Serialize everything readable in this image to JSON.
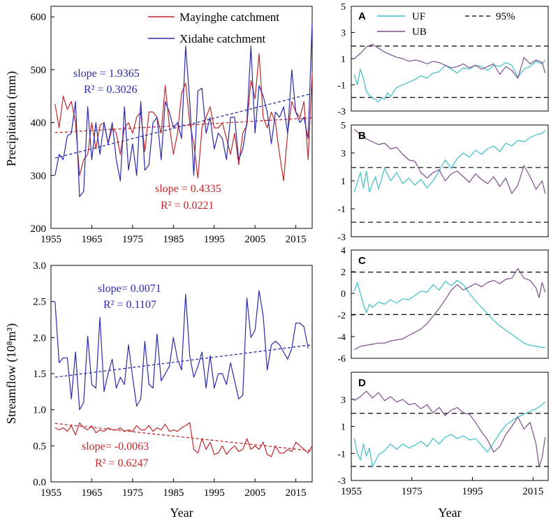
{
  "chart_data": [
    {
      "id": "precip",
      "type": "line",
      "ylabel": "Precipitation (mm)",
      "xlabel": "",
      "xlim": [
        1955,
        2019
      ],
      "ylim": [
        200,
        620
      ],
      "xticks": [
        "1955",
        "1965",
        "1975",
        "1985",
        "1995",
        "2005",
        "2015"
      ],
      "yticks": [
        "200",
        "300",
        "400",
        "500",
        "600"
      ],
      "legend": [
        "Mayinghe catchment",
        "Xidahe catchment"
      ],
      "annotations": {
        "blue_slope": "slope = 1.9365",
        "blue_r2": "R² = 0.3026",
        "red_slope": "slope = 0.4335",
        "red_r2": "R² = 0.0221"
      },
      "series": [
        {
          "name": "Mayinghe catchment",
          "color": "#c0282a",
          "x_start": 1956,
          "values": [
            435,
            390,
            450,
            425,
            440,
            400,
            300,
            330,
            340,
            400,
            350,
            395,
            400,
            360,
            390,
            380,
            340,
            390,
            400,
            380,
            410,
            420,
            345,
            420,
            420,
            410,
            380,
            470,
            395,
            340,
            380,
            455,
            475,
            400,
            360,
            295,
            390,
            410,
            430,
            390,
            390,
            400,
            370,
            340,
            380,
            320,
            380,
            395,
            480,
            445,
            530,
            410,
            390,
            420,
            400,
            340,
            290,
            380,
            440,
            420,
            410,
            440,
            330,
            495
          ]
        },
        {
          "name": "Xidahe catchment",
          "color": "#2a2aaa",
          "x_start": 1956,
          "values": [
            300,
            340,
            330,
            375,
            380,
            440,
            260,
            270,
            430,
            330,
            400,
            340,
            400,
            360,
            400,
            330,
            290,
            430,
            310,
            360,
            300,
            440,
            310,
            320,
            400,
            410,
            330,
            440,
            420,
            390,
            400,
            370,
            545,
            440,
            300,
            460,
            465,
            380,
            410,
            350,
            380,
            370,
            330,
            410,
            410,
            330,
            350,
            400,
            545,
            380,
            470,
            450,
            420,
            360,
            420,
            410,
            430,
            380,
            500,
            420,
            400,
            410,
            370,
            590
          ]
        }
      ],
      "trendlines": [
        {
          "color": "#c0282a",
          "x": [
            1956,
            2019
          ],
          "y": [
            381,
            409
          ]
        },
        {
          "color": "#2a2aaa",
          "x": [
            1956,
            2019
          ],
          "y": [
            333,
            455
          ]
        }
      ]
    },
    {
      "id": "streamflow",
      "type": "line",
      "ylabel": "Streamflow (10⁸m³)",
      "xlabel": "Year",
      "xlim": [
        1955,
        2019
      ],
      "ylim": [
        0,
        3
      ],
      "xticks": [
        "1955",
        "1965",
        "1975",
        "1985",
        "1995",
        "2005",
        "2015"
      ],
      "yticks": [
        "0.0",
        "0.5",
        "1.0",
        "1.5",
        "2.0",
        "2.5",
        "3.0"
      ],
      "annotations": {
        "blue_slope": "slope= 0.0071",
        "blue_r2": "R² = 0.1107",
        "red_slope": "slope= -0.0063",
        "red_r2": "R² = 0.6247"
      },
      "series": [
        {
          "name": "Xidahe catchment",
          "color": "#2a2aaa",
          "x_start": 1956,
          "values": [
            2.5,
            1.65,
            1.72,
            1.72,
            1.15,
            1.8,
            1.0,
            1.1,
            2.02,
            1.35,
            1.3,
            2.28,
            1.25,
            1.5,
            1.7,
            1.3,
            1.45,
            1.35,
            1.9,
            1.45,
            1.05,
            1.15,
            1.95,
            1.35,
            1.3,
            2.05,
            1.4,
            1.5,
            1.6,
            2.0,
            1.7,
            1.55,
            2.6,
            1.75,
            1.45,
            1.6,
            1.8,
            1.3,
            1.75,
            1.3,
            1.5,
            1.5,
            1.35,
            1.65,
            1.4,
            1.15,
            1.2,
            2.55,
            2.0,
            2.1,
            2.65,
            2.3,
            1.55,
            1.9,
            1.95,
            1.9,
            1.8,
            1.7,
            1.85,
            2.2,
            2.2,
            2.15,
            1.85
          ]
        },
        {
          "name": "Mayinghe catchment",
          "color": "#c0282a",
          "x_start": 1956,
          "values": [
            0.75,
            0.72,
            0.75,
            0.7,
            0.78,
            0.65,
            0.82,
            0.75,
            0.72,
            0.78,
            0.68,
            0.72,
            0.7,
            0.75,
            0.72,
            0.72,
            0.75,
            0.7,
            0.72,
            0.7,
            0.78,
            0.72,
            0.72,
            0.78,
            0.7,
            0.75,
            0.72,
            0.8,
            0.7,
            0.72,
            0.7,
            0.75,
            0.78,
            0.82,
            0.45,
            0.4,
            0.6,
            0.45,
            0.55,
            0.38,
            0.4,
            0.5,
            0.38,
            0.45,
            0.5,
            0.42,
            0.45,
            0.6,
            0.45,
            0.5,
            0.45,
            0.55,
            0.38,
            0.35,
            0.5,
            0.4,
            0.4,
            0.45,
            0.42,
            0.55,
            0.5,
            0.45,
            0.4,
            0.5
          ]
        }
      ],
      "trendlines": [
        {
          "color": "#c0282a",
          "x": [
            1956,
            2019
          ],
          "y": [
            0.81,
            0.43
          ]
        },
        {
          "color": "#2a2aaa",
          "x": [
            1956,
            2019
          ],
          "y": [
            1.45,
            1.9
          ]
        }
      ]
    },
    {
      "id": "A",
      "type": "line",
      "panel_label": "A",
      "xlim": [
        1955,
        2020
      ],
      "ylim": [
        -3,
        5
      ],
      "yticks": [
        "-3",
        "-1",
        "1",
        "3",
        "5"
      ],
      "threshold": [
        1.96,
        -1.96
      ],
      "legend": [
        "UF",
        "UB",
        "95%"
      ],
      "series": [
        {
          "name": "UF",
          "color": "#3cbfc8",
          "x": [
            1956,
            1957,
            1958,
            1959,
            1960,
            1961,
            1962,
            1963,
            1964,
            1965,
            1966,
            1967,
            1968,
            1969,
            1970,
            1972,
            1974,
            1976,
            1978,
            1980,
            1982,
            1984,
            1986,
            1988,
            1990,
            1992,
            1994,
            1996,
            1998,
            2000,
            2002,
            2004,
            2006,
            2008,
            2010,
            2012,
            2014,
            2016,
            2018,
            2019
          ],
          "y": [
            -0.2,
            -1.0,
            0.2,
            -0.5,
            -1.5,
            -1.8,
            -2.0,
            -2.1,
            -2.3,
            -2.0,
            -2.1,
            -1.6,
            -1.9,
            -1.5,
            -1.2,
            -1.0,
            -0.8,
            -0.6,
            -0.3,
            -0.5,
            -0.1,
            0.0,
            0.5,
            0.2,
            -0.1,
            0.3,
            0.2,
            0.5,
            0.4,
            0.1,
            0.5,
            0.4,
            0.7,
            0.5,
            -0.4,
            0.2,
            0.4,
            0.8,
            0.6,
            0.9
          ]
        },
        {
          "name": "UB",
          "color": "#7b4f8a",
          "x": [
            1956,
            1958,
            1960,
            1962,
            1964,
            1966,
            1968,
            1970,
            1972,
            1974,
            1976,
            1978,
            1980,
            1982,
            1984,
            1986,
            1988,
            1990,
            1992,
            1994,
            1996,
            1998,
            2000,
            2002,
            2004,
            2006,
            2008,
            2010,
            2012,
            2014,
            2016,
            2018,
            2019
          ],
          "y": [
            1.0,
            1.4,
            1.9,
            2.1,
            1.8,
            1.5,
            1.3,
            1.1,
            1.0,
            0.8,
            0.9,
            0.8,
            0.6,
            0.8,
            0.7,
            0.5,
            0.3,
            0.4,
            0.6,
            0.3,
            0.5,
            0.2,
            0.4,
            0.6,
            -0.2,
            0.4,
            0.1,
            -0.5,
            1.1,
            0.6,
            0.9,
            0.7,
            -0.1
          ]
        }
      ]
    },
    {
      "id": "B",
      "type": "line",
      "panel_label": "B",
      "xlim": [
        1955,
        2020
      ],
      "ylim": [
        -3,
        5
      ],
      "yticks": [
        "-3",
        "-1",
        "1",
        "3",
        "5"
      ],
      "threshold": [
        1.96,
        -1.96
      ],
      "series": [
        {
          "name": "UF",
          "color": "#3cbfc8",
          "x": [
            1956,
            1958,
            1959,
            1960,
            1961,
            1962,
            1963,
            1964,
            1966,
            1968,
            1970,
            1972,
            1974,
            1976,
            1978,
            1980,
            1982,
            1984,
            1986,
            1988,
            1990,
            1992,
            1994,
            1996,
            1998,
            2000,
            2002,
            2004,
            2006,
            2008,
            2010,
            2012,
            2014,
            2016,
            2018,
            2019
          ],
          "y": [
            0.2,
            1.6,
            0.5,
            1.7,
            0.2,
            0.8,
            1.3,
            0.4,
            1.9,
            1.0,
            1.6,
            0.8,
            1.2,
            0.7,
            1.1,
            0.5,
            1.0,
            1.7,
            2.5,
            1.9,
            2.6,
            3.0,
            2.7,
            3.2,
            2.9,
            3.3,
            3.5,
            3.1,
            3.7,
            3.5,
            3.9,
            3.8,
            4.1,
            4.3,
            4.4,
            4.6
          ]
        },
        {
          "name": "UB",
          "color": "#7b4f8a",
          "x": [
            1956,
            1958,
            1960,
            1962,
            1964,
            1966,
            1968,
            1970,
            1972,
            1974,
            1976,
            1978,
            1980,
            1982,
            1984,
            1986,
            1988,
            1990,
            1992,
            1994,
            1996,
            1998,
            2000,
            2002,
            2004,
            2006,
            2008,
            2010,
            2012,
            2014,
            2016,
            2018,
            2019
          ],
          "y": [
            4.7,
            4.3,
            4.0,
            3.8,
            3.6,
            3.7,
            3.3,
            3.4,
            2.9,
            2.5,
            2.4,
            1.6,
            1.2,
            1.6,
            1.8,
            1.0,
            1.5,
            1.7,
            1.3,
            0.9,
            1.5,
            1.1,
            0.8,
            1.3,
            0.6,
            1.2,
            0.1,
            0.7,
            2.1,
            1.3,
            0.4,
            1.0,
            0.1
          ]
        }
      ]
    },
    {
      "id": "C",
      "type": "line",
      "panel_label": "C",
      "xlim": [
        1955,
        2020
      ],
      "ylim": [
        -6,
        4
      ],
      "yticks": [
        "-6",
        "-4",
        "-2",
        "0",
        "2",
        "4"
      ],
      "threshold": [
        1.96,
        -1.96
      ],
      "series": [
        {
          "name": "UF",
          "color": "#3cbfc8",
          "x": [
            1956,
            1957,
            1958,
            1959,
            1960,
            1961,
            1962,
            1964,
            1966,
            1968,
            1970,
            1972,
            1974,
            1976,
            1978,
            1980,
            1982,
            1984,
            1986,
            1988,
            1990,
            1992,
            1994,
            1996,
            1998,
            2000,
            2002,
            2004,
            2006,
            2008,
            2010,
            2012,
            2014,
            2016,
            2018,
            2019
          ],
          "y": [
            0.2,
            1.0,
            0.0,
            -1.0,
            -1.8,
            -1.0,
            -1.3,
            -0.8,
            -1.0,
            -0.6,
            -0.9,
            -0.5,
            -0.6,
            -0.2,
            0.2,
            0.1,
            0.8,
            0.3,
            1.1,
            0.7,
            1.2,
            0.8,
            0.0,
            -0.7,
            -1.3,
            -1.9,
            -2.5,
            -3.0,
            -3.4,
            -3.8,
            -4.2,
            -4.6,
            -4.8,
            -4.9,
            -5.0,
            -5.0
          ]
        },
        {
          "name": "UB",
          "color": "#7b4f8a",
          "x": [
            1956,
            1958,
            1960,
            1962,
            1964,
            1966,
            1968,
            1970,
            1972,
            1974,
            1976,
            1978,
            1980,
            1982,
            1984,
            1986,
            1988,
            1990,
            1992,
            1994,
            1996,
            1998,
            2000,
            2002,
            2004,
            2006,
            2008,
            2010,
            2012,
            2014,
            2016,
            2017,
            2018,
            2019
          ],
          "y": [
            -5.2,
            -4.9,
            -4.8,
            -4.7,
            -4.6,
            -4.6,
            -4.4,
            -4.3,
            -4.2,
            -3.9,
            -3.6,
            -3.3,
            -2.8,
            -2.1,
            -1.4,
            -0.6,
            0.3,
            0.8,
            0.3,
            0.6,
            0.9,
            0.6,
            1.0,
            1.2,
            0.9,
            1.3,
            1.4,
            2.3,
            1.4,
            1.2,
            0.5,
            -0.4,
            1.0,
            0.1
          ]
        }
      ]
    },
    {
      "id": "D",
      "type": "line",
      "panel_label": "D",
      "xlim": [
        1955,
        2020
      ],
      "ylim": [
        -3,
        5
      ],
      "yticks": [
        "-3",
        "-1",
        "1",
        "3"
      ],
      "xticks": [
        "1955",
        "1975",
        "1995",
        "2015"
      ],
      "xlabel": "Year",
      "threshold": [
        1.96,
        -1.96
      ],
      "series": [
        {
          "name": "UF",
          "color": "#3cbfc8",
          "x": [
            1956,
            1957,
            1958,
            1959,
            1960,
            1961,
            1962,
            1964,
            1966,
            1968,
            1970,
            1972,
            1974,
            1976,
            1978,
            1980,
            1982,
            1984,
            1986,
            1988,
            1990,
            1992,
            1994,
            1996,
            1998,
            2000,
            2002,
            2004,
            2006,
            2008,
            2010,
            2012,
            2014,
            2016,
            2018,
            2019
          ],
          "y": [
            0.1,
            -1.0,
            -1.5,
            -0.3,
            -1.2,
            -0.6,
            -2.0,
            -1.1,
            -0.8,
            -0.3,
            -0.7,
            -0.3,
            -0.6,
            -0.4,
            -0.1,
            -0.5,
            0.1,
            -0.3,
            0.2,
            0.4,
            0.1,
            0.3,
            0.0,
            0.1,
            -0.4,
            -0.9,
            -0.2,
            0.5,
            1.1,
            1.4,
            1.7,
            1.9,
            2.1,
            2.3,
            2.6,
            2.8
          ]
        },
        {
          "name": "UB",
          "color": "#7b4f8a",
          "x": [
            1956,
            1958,
            1960,
            1962,
            1964,
            1966,
            1968,
            1970,
            1972,
            1974,
            1976,
            1978,
            1980,
            1982,
            1984,
            1986,
            1988,
            1990,
            1992,
            1994,
            1996,
            1998,
            2000,
            2002,
            2004,
            2006,
            2008,
            2010,
            2012,
            2014,
            2016,
            2017,
            2018,
            2019
          ],
          "y": [
            2.9,
            3.2,
            3.6,
            3.1,
            3.5,
            2.9,
            3.2,
            2.8,
            3.0,
            2.6,
            2.7,
            2.3,
            2.6,
            2.0,
            2.4,
            1.8,
            2.2,
            2.4,
            2.0,
            1.9,
            1.3,
            0.6,
            0.0,
            -0.9,
            -0.5,
            0.4,
            1.0,
            1.7,
            0.8,
            1.3,
            -0.3,
            -2.0,
            -1.3,
            0.2
          ]
        }
      ]
    }
  ]
}
